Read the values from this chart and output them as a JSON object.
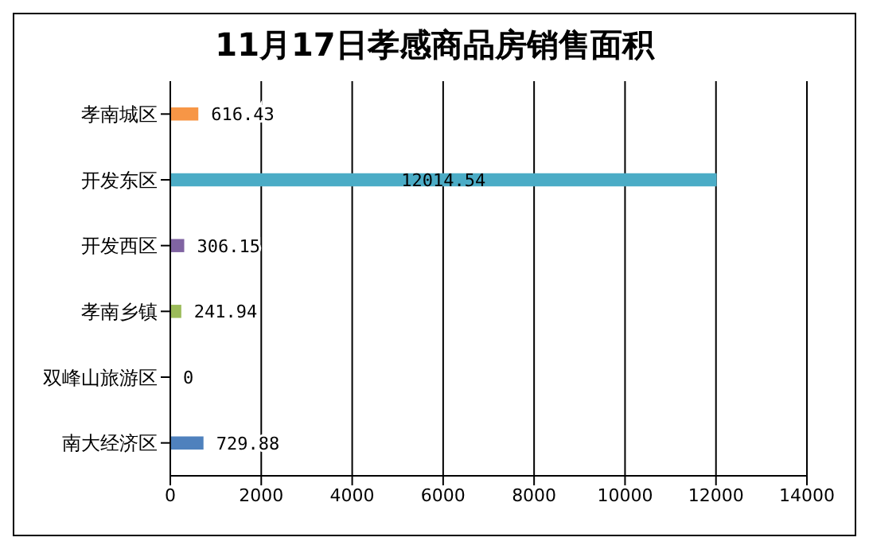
{
  "chart_data": {
    "type": "bar",
    "orientation": "horizontal",
    "title": "11月17日孝感商品房销售面积",
    "categories": [
      "孝南城区",
      "开发东区",
      "开发西区",
      "孝南乡镇",
      "双峰山旅游区",
      "南大经济区"
    ],
    "values": [
      616.43,
      12014.54,
      306.15,
      241.94,
      0,
      729.88
    ],
    "colors": [
      "#f79646",
      "#4bacc6",
      "#8064a2",
      "#9bbb59",
      "#c0504d",
      "#4f81bd"
    ],
    "xlim": [
      0,
      14000
    ],
    "xticks": [
      0,
      2000,
      4000,
      6000,
      8000,
      10000,
      12000,
      14000
    ],
    "grid": "x",
    "data_labels": true
  }
}
